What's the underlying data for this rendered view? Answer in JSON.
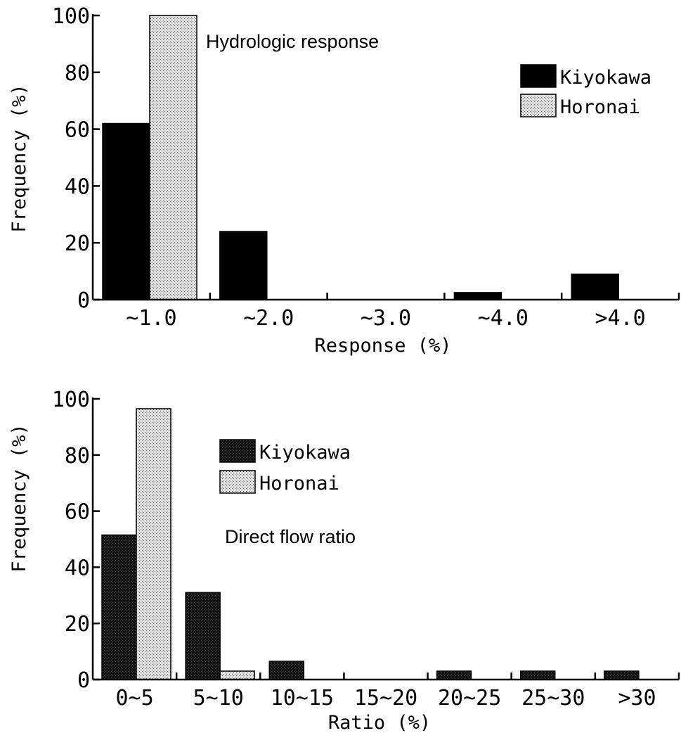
{
  "chart_data": [
    {
      "type": "bar",
      "title": "Hydrologic response",
      "xlabel": "Response (%)",
      "ylabel": "Frequency (%)",
      "ylim": [
        0,
        100
      ],
      "yticks": [
        "0",
        "20",
        "40",
        "60",
        "80",
        "100"
      ],
      "categories": [
        "~1.0",
        "~2.0",
        "~3.0",
        "~4.0",
        ">4.0"
      ],
      "legend_position": "top-right",
      "series": [
        {
          "name": "Kiyokawa",
          "values": [
            62,
            24,
            0,
            2.5,
            9
          ],
          "color": "#000000",
          "pattern": "solid"
        },
        {
          "name": "Horonai",
          "values": [
            100,
            0,
            0,
            0,
            0
          ],
          "color": "#c8c8c8",
          "pattern": "dotted"
        }
      ]
    },
    {
      "type": "bar",
      "title": "Direct flow ratio",
      "xlabel": "Ratio (%)",
      "ylabel": "Frequency (%)",
      "ylim": [
        0,
        100
      ],
      "yticks": [
        "0",
        "20",
        "40",
        "60",
        "80",
        "100"
      ],
      "categories": [
        "0~5",
        "5~10",
        "10~15",
        "15~20",
        "20~25",
        "25~30",
        ">30"
      ],
      "legend_position": "top-center",
      "series": [
        {
          "name": "Kiyokawa",
          "values": [
            51.5,
            31,
            6.5,
            0,
            3,
            3,
            3
          ],
          "color": "#1a1a1a",
          "pattern": "dark-dotted"
        },
        {
          "name": "Horonai",
          "values": [
            96.5,
            3,
            0,
            0,
            0,
            0,
            0
          ],
          "color": "#c8c8c8",
          "pattern": "dotted"
        }
      ]
    }
  ]
}
